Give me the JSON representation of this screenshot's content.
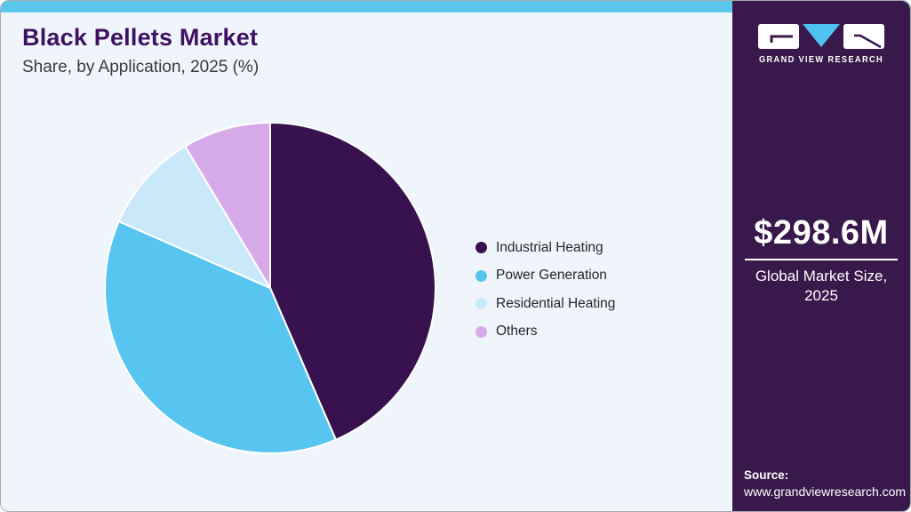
{
  "header": {
    "title": "Black Pellets Market",
    "subtitle": "Share, by Application, 2025 (%)"
  },
  "chart_data": {
    "type": "pie",
    "title": "Black Pellets Market Share, by Application, 2025 (%)",
    "unit": "%",
    "start_angle_deg": 0,
    "direction": "clockwise",
    "legend_position": "right",
    "slices": [
      {
        "label": "Industrial Heating",
        "value": 43.5,
        "color": "#37124E"
      },
      {
        "label": "Power Generation",
        "value": 38.1,
        "color": "#57C5EF"
      },
      {
        "label": "Residential Heating",
        "value": 9.8,
        "color": "#C9E9FB"
      },
      {
        "label": "Others",
        "value": 8.6,
        "color": "#D6A9E9"
      }
    ]
  },
  "sidebar": {
    "brand_name": "GRAND VIEW RESEARCH",
    "market_size": "$298.6M",
    "market_size_label_line1": "Global Market Size,",
    "market_size_label_line2": "2025",
    "source_label": "Source:",
    "source_url": "www.grandviewresearch.com",
    "background_color": "#39194B",
    "logo_accent_color": "#4FC3F0"
  },
  "theme": {
    "topbar_color": "#5BC7EC",
    "canvas_background": "#EFF5FA",
    "title_color": "#3E1163",
    "subtitle_color": "#3A3A40",
    "legend_text_color": "#26262E"
  }
}
